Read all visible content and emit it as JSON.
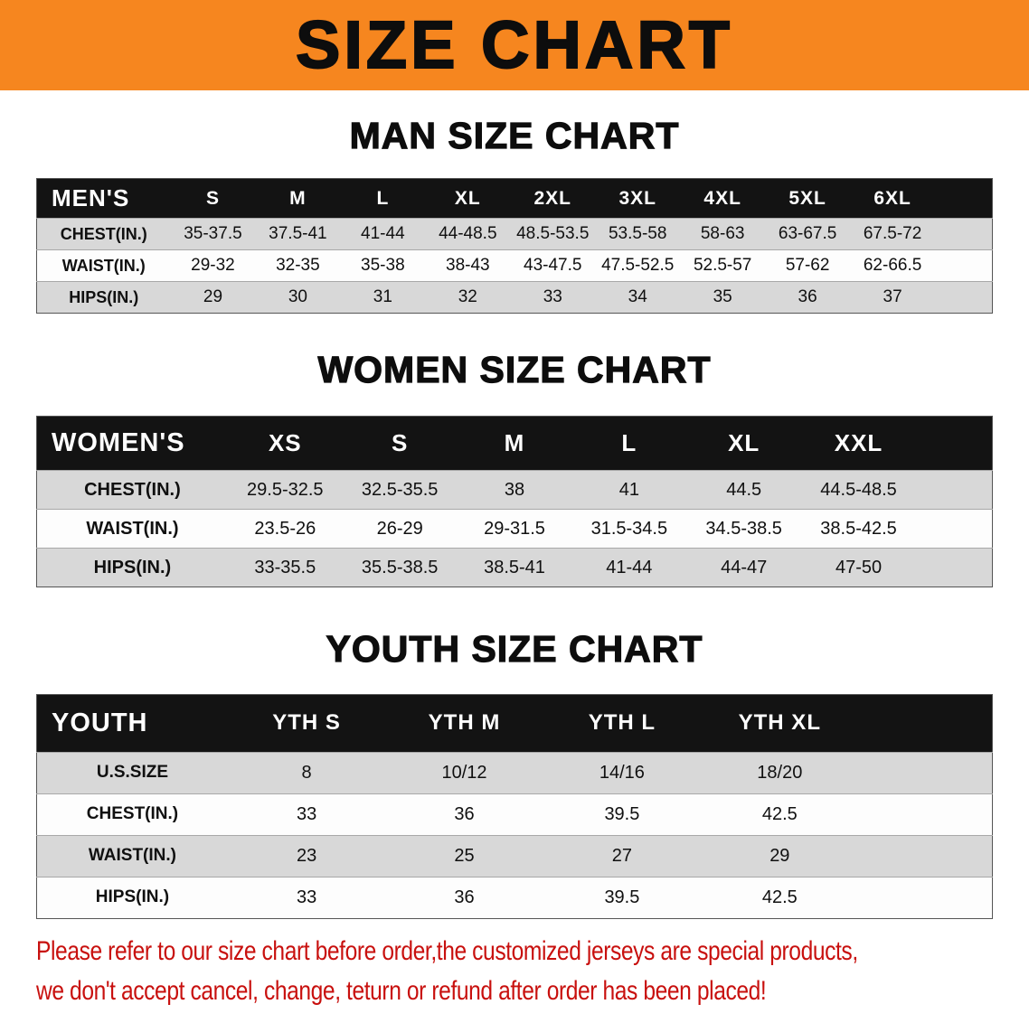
{
  "banner": {
    "title": "SIZE CHART",
    "bg_color": "#F6861F",
    "text_color": "#0D0D0D"
  },
  "sections": [
    {
      "id": "men",
      "heading": "MAN SIZE CHART",
      "table": {
        "label_header": "MEN'S",
        "columns": [
          "S",
          "M",
          "L",
          "XL",
          "2XL",
          "3XL",
          "4XL",
          "5XL",
          "6XL"
        ],
        "rows": [
          {
            "label": "CHEST(IN.)",
            "values": [
              "35-37.5",
              "37.5-41",
              "41-44",
              "44-48.5",
              "48.5-53.5",
              "53.5-58",
              "58-63",
              "63-67.5",
              "67.5-72"
            ]
          },
          {
            "label": "WAIST(IN.)",
            "values": [
              "29-32",
              "32-35",
              "35-38",
              "38-43",
              "43-47.5",
              "47.5-52.5",
              "52.5-57",
              "57-62",
              "62-66.5"
            ]
          },
          {
            "label": "HIPS(IN.)",
            "values": [
              "29",
              "30",
              "31",
              "32",
              "33",
              "34",
              "35",
              "36",
              "37"
            ]
          }
        ]
      }
    },
    {
      "id": "women",
      "heading": "WOMEN SIZE CHART",
      "table": {
        "label_header": "WOMEN'S",
        "columns": [
          "XS",
          "S",
          "M",
          "L",
          "XL",
          "XXL"
        ],
        "rows": [
          {
            "label": "CHEST(IN.)",
            "values": [
              "29.5-32.5",
              "32.5-35.5",
              "38",
              "41",
              "44.5",
              "44.5-48.5"
            ]
          },
          {
            "label": "WAIST(IN.)",
            "values": [
              "23.5-26",
              "26-29",
              "29-31.5",
              "31.5-34.5",
              "34.5-38.5",
              "38.5-42.5"
            ]
          },
          {
            "label": "HIPS(IN.)",
            "values": [
              "33-35.5",
              "35.5-38.5",
              "38.5-41",
              "41-44",
              "44-47",
              "47-50"
            ]
          }
        ]
      }
    },
    {
      "id": "youth",
      "heading": "YOUTH SIZE CHART",
      "table": {
        "label_header": "YOUTH",
        "columns": [
          "YTH S",
          "YTH M",
          "YTH L",
          "YTH XL"
        ],
        "rows": [
          {
            "label": "U.S.SIZE",
            "values": [
              "8",
              "10/12",
              "14/16",
              "18/20"
            ]
          },
          {
            "label": "CHEST(IN.)",
            "values": [
              "33",
              "36",
              "39.5",
              "42.5"
            ]
          },
          {
            "label": "WAIST(IN.)",
            "values": [
              "23",
              "25",
              "27",
              "29"
            ]
          },
          {
            "label": "HIPS(IN.)",
            "values": [
              "33",
              "36",
              "39.5",
              "42.5"
            ]
          }
        ]
      }
    }
  ],
  "disclaimer": {
    "text_color": "#C8100E",
    "lines": [
      "Please refer to our size chart before order,the customized jerseys are special products,",
      "we don't accept cancel, change, teturn or refund after order has been placed!"
    ]
  }
}
